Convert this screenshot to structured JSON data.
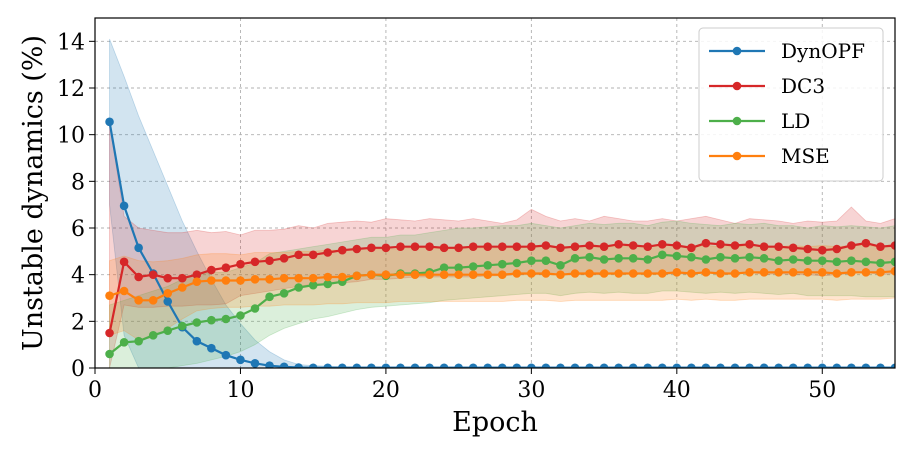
{
  "chart_data": {
    "type": "line",
    "xlabel": "Epoch",
    "ylabel": "Unstable dynamics (%)",
    "xlim": [
      0,
      55
    ],
    "ylim": [
      0,
      15
    ],
    "xticks": [
      0,
      10,
      20,
      30,
      40,
      50
    ],
    "yticks": [
      0,
      2,
      4,
      6,
      8,
      10,
      12,
      14
    ],
    "grid": true,
    "legend_position": "top-right",
    "series": [
      {
        "name": "DynOPF",
        "color": "#1f77b4",
        "x": [
          1,
          2,
          3,
          4,
          5,
          6,
          7,
          8,
          9,
          10,
          11,
          12,
          13,
          14,
          15,
          16,
          17,
          18,
          19,
          20,
          21,
          22,
          23,
          24,
          25,
          26,
          27,
          28,
          29,
          30,
          31,
          32,
          33,
          34,
          35,
          36,
          37,
          38,
          39,
          40,
          41,
          42,
          43,
          44,
          45,
          46,
          47,
          48,
          49,
          50,
          51,
          52,
          53,
          54,
          55
        ],
        "values": [
          10.55,
          6.95,
          5.15,
          4.05,
          2.85,
          1.75,
          1.15,
          0.85,
          0.55,
          0.35,
          0.2,
          0.1,
          0.05,
          0.02,
          0.01,
          0.01,
          0.01,
          0.01,
          0.01,
          0.01,
          0.01,
          0.01,
          0.01,
          0.01,
          0.01,
          0.01,
          0.01,
          0.01,
          0.01,
          0.01,
          0.01,
          0.01,
          0.01,
          0.01,
          0.01,
          0.01,
          0.01,
          0.01,
          0.01,
          0.01,
          0.01,
          0.01,
          0.01,
          0.01,
          0.01,
          0.01,
          0.01,
          0.01,
          0.01,
          0.01,
          0.01,
          0.01,
          0.01,
          0.01,
          0.01
        ],
        "band_upper": [
          14.1,
          12.5,
          10.8,
          9.3,
          7.8,
          6.3,
          5.0,
          3.8,
          2.7,
          1.9,
          1.2,
          0.7,
          0.35,
          0.15,
          0.1,
          0.08,
          0.05,
          0.05,
          0.05,
          0.05,
          0.05,
          0.05,
          0.05,
          0.05,
          0.05,
          0.05,
          0.05,
          0.05,
          0.05,
          0.05,
          0.05,
          0.05,
          0.05,
          0.05,
          0.05,
          0.05,
          0.05,
          0.05,
          0.05,
          0.05,
          0.05,
          0.05,
          0.05,
          0.05,
          0.05,
          0.05,
          0.05,
          0.05,
          0.05,
          0.05,
          0.05,
          0.05,
          0.05,
          0.05,
          0.05
        ],
        "band_lower": [
          7.0,
          1.4,
          0,
          0,
          0,
          0,
          0,
          0,
          0,
          0,
          0,
          0,
          0,
          0,
          0,
          0,
          0,
          0,
          0,
          0,
          0,
          0,
          0,
          0,
          0,
          0,
          0,
          0,
          0,
          0,
          0,
          0,
          0,
          0,
          0,
          0,
          0,
          0,
          0,
          0,
          0,
          0,
          0,
          0,
          0,
          0,
          0,
          0,
          0,
          0,
          0,
          0,
          0,
          0,
          0
        ]
      },
      {
        "name": "DC3",
        "color": "#d62728",
        "x": [
          1,
          2,
          3,
          4,
          5,
          6,
          7,
          8,
          9,
          10,
          11,
          12,
          13,
          14,
          15,
          16,
          17,
          18,
          19,
          20,
          21,
          22,
          23,
          24,
          25,
          26,
          27,
          28,
          29,
          30,
          31,
          32,
          33,
          34,
          35,
          36,
          37,
          38,
          39,
          40,
          41,
          42,
          43,
          44,
          45,
          46,
          47,
          48,
          49,
          50,
          51,
          52,
          53,
          54,
          55
        ],
        "values": [
          1.5,
          4.55,
          3.9,
          4.0,
          3.85,
          3.85,
          4.0,
          4.2,
          4.3,
          4.45,
          4.55,
          4.6,
          4.7,
          4.85,
          4.85,
          4.95,
          5.05,
          5.1,
          5.15,
          5.15,
          5.2,
          5.2,
          5.2,
          5.15,
          5.15,
          5.2,
          5.2,
          5.2,
          5.2,
          5.2,
          5.25,
          5.15,
          5.2,
          5.25,
          5.2,
          5.3,
          5.25,
          5.2,
          5.3,
          5.25,
          5.15,
          5.35,
          5.3,
          5.25,
          5.3,
          5.2,
          5.2,
          5.15,
          5.1,
          5.05,
          5.1,
          5.25,
          5.35,
          5.2,
          5.25
        ],
        "band_upper": [
          10.5,
          6.5,
          6.0,
          5.9,
          5.8,
          5.8,
          5.9,
          5.8,
          5.85,
          5.7,
          5.9,
          5.9,
          5.95,
          6.1,
          6.0,
          6.2,
          6.25,
          6.3,
          6.25,
          6.4,
          6.35,
          6.3,
          6.4,
          6.35,
          6.3,
          6.4,
          6.3,
          6.2,
          6.35,
          6.8,
          6.5,
          6.3,
          6.4,
          6.3,
          6.5,
          6.4,
          6.3,
          6.3,
          6.4,
          6.3,
          6.4,
          6.5,
          6.35,
          6.2,
          6.4,
          6.35,
          6.3,
          6.2,
          6.3,
          6.25,
          6.3,
          6.9,
          6.3,
          6.2,
          6.4
        ],
        "band_lower": [
          0,
          2.7,
          2.6,
          2.6,
          2.65,
          2.65,
          2.7,
          2.7,
          2.75,
          3.1,
          3.2,
          3.3,
          3.4,
          3.5,
          3.6,
          3.6,
          3.65,
          3.7,
          3.8,
          3.8,
          3.85,
          3.9,
          3.9,
          3.9,
          3.9,
          3.9,
          3.95,
          3.95,
          4.0,
          4.0,
          4.0,
          4.0,
          4.0,
          4.0,
          4.0,
          4.05,
          4.05,
          4.05,
          4.0,
          4.05,
          4.0,
          4.1,
          4.1,
          4.05,
          4.1,
          4.0,
          4.05,
          4.0,
          4.0,
          3.95,
          4.0,
          4.05,
          4.1,
          4.0,
          4.05
        ]
      },
      {
        "name": "LD",
        "color": "#4daf4a",
        "x": [
          1,
          2,
          3,
          4,
          5,
          6,
          7,
          8,
          9,
          10,
          11,
          12,
          13,
          14,
          15,
          16,
          17,
          18,
          19,
          20,
          21,
          22,
          23,
          24,
          25,
          26,
          27,
          28,
          29,
          30,
          31,
          32,
          33,
          34,
          35,
          36,
          37,
          38,
          39,
          40,
          41,
          42,
          43,
          44,
          45,
          46,
          47,
          48,
          49,
          50,
          51,
          52,
          53,
          54,
          55
        ],
        "values": [
          0.6,
          1.1,
          1.15,
          1.4,
          1.6,
          1.8,
          1.95,
          2.05,
          2.1,
          2.25,
          2.55,
          3.05,
          3.2,
          3.45,
          3.55,
          3.6,
          3.7,
          3.95,
          4.0,
          3.95,
          4.05,
          4.05,
          4.1,
          4.3,
          4.3,
          4.35,
          4.4,
          4.45,
          4.5,
          4.6,
          4.6,
          4.4,
          4.7,
          4.75,
          4.65,
          4.7,
          4.7,
          4.65,
          4.85,
          4.8,
          4.75,
          4.65,
          4.75,
          4.7,
          4.75,
          4.7,
          4.6,
          4.65,
          4.6,
          4.6,
          4.55,
          4.6,
          4.55,
          4.5,
          4.55
        ],
        "band_upper": [
          2.7,
          2.9,
          3.1,
          3.3,
          3.5,
          3.8,
          4.0,
          4.1,
          4.1,
          4.3,
          4.5,
          4.9,
          5.0,
          5.1,
          5.2,
          5.3,
          5.4,
          5.5,
          5.6,
          5.6,
          5.7,
          5.7,
          5.8,
          5.9,
          6.0,
          6.0,
          6.05,
          6.1,
          6.1,
          6.2,
          6.1,
          6.0,
          6.1,
          6.2,
          6.15,
          6.2,
          6.2,
          6.1,
          6.25,
          6.3,
          6.2,
          6.15,
          6.1,
          6.2,
          6.15,
          6.2,
          6.1,
          6.1,
          6.0,
          6.1,
          6.05,
          6.1,
          6.05,
          6.0,
          6.1
        ],
        "band_lower": [
          0,
          0,
          0,
          0,
          0,
          0.1,
          0.2,
          0.35,
          0.5,
          0.7,
          1.0,
          1.4,
          1.7,
          1.9,
          2.1,
          2.2,
          2.35,
          2.5,
          2.6,
          2.65,
          2.7,
          2.75,
          2.8,
          2.9,
          2.95,
          3.0,
          3.05,
          3.1,
          3.15,
          3.2,
          3.2,
          3.1,
          3.2,
          3.25,
          3.2,
          3.25,
          3.2,
          3.2,
          3.3,
          3.3,
          3.25,
          3.2,
          3.25,
          3.2,
          3.25,
          3.2,
          3.15,
          3.2,
          3.1,
          3.1,
          3.1,
          3.1,
          3.05,
          3.05,
          3.05
        ]
      },
      {
        "name": "MSE",
        "color": "#ff7f0e",
        "x": [
          1,
          2,
          3,
          4,
          5,
          6,
          7,
          8,
          9,
          10,
          11,
          12,
          13,
          14,
          15,
          16,
          17,
          18,
          19,
          20,
          21,
          22,
          23,
          24,
          25,
          26,
          27,
          28,
          29,
          30,
          31,
          32,
          33,
          34,
          35,
          36,
          37,
          38,
          39,
          40,
          41,
          42,
          43,
          44,
          45,
          46,
          47,
          48,
          49,
          50,
          51,
          52,
          53,
          54,
          55
        ],
        "values": [
          3.1,
          3.3,
          2.9,
          2.9,
          3.2,
          3.45,
          3.7,
          3.75,
          3.75,
          3.75,
          3.8,
          3.8,
          3.85,
          3.85,
          3.85,
          3.9,
          3.9,
          3.95,
          4.0,
          4.0,
          4.0,
          4.0,
          4.0,
          4.0,
          4.0,
          4.0,
          4.0,
          4.0,
          4.05,
          4.05,
          4.05,
          4.0,
          4.05,
          4.05,
          4.05,
          4.05,
          4.05,
          4.05,
          4.05,
          4.1,
          4.05,
          4.1,
          4.05,
          4.05,
          4.1,
          4.1,
          4.1,
          4.1,
          4.1,
          4.1,
          4.05,
          4.1,
          4.1,
          4.1,
          4.15
        ],
        "band_upper": [
          4.6,
          4.8,
          4.6,
          4.55,
          4.6,
          4.7,
          4.85,
          4.9,
          4.9,
          4.85,
          4.95,
          4.95,
          4.95,
          5.0,
          5.0,
          5.05,
          5.05,
          5.1,
          5.1,
          5.1,
          5.1,
          5.15,
          5.15,
          5.1,
          5.15,
          5.15,
          5.1,
          5.15,
          5.15,
          5.2,
          5.2,
          5.15,
          5.2,
          5.2,
          5.2,
          5.2,
          5.2,
          5.2,
          5.25,
          5.25,
          5.2,
          5.25,
          5.2,
          5.2,
          5.25,
          5.25,
          5.2,
          5.25,
          5.2,
          5.25,
          5.2,
          5.25,
          5.25,
          5.2,
          5.3
        ],
        "band_lower": [
          1.4,
          1.6,
          1.2,
          1.3,
          1.7,
          2.1,
          2.45,
          2.55,
          2.6,
          2.6,
          2.65,
          2.65,
          2.7,
          2.7,
          2.7,
          2.75,
          2.75,
          2.8,
          2.8,
          2.8,
          2.85,
          2.85,
          2.85,
          2.85,
          2.85,
          2.85,
          2.85,
          2.85,
          2.9,
          2.9,
          2.9,
          2.85,
          2.9,
          2.9,
          2.9,
          2.9,
          2.9,
          2.9,
          2.9,
          2.95,
          2.9,
          2.95,
          2.9,
          2.9,
          2.95,
          2.95,
          2.95,
          2.95,
          2.95,
          2.95,
          2.9,
          2.95,
          2.95,
          2.95,
          3.0
        ]
      }
    ]
  }
}
